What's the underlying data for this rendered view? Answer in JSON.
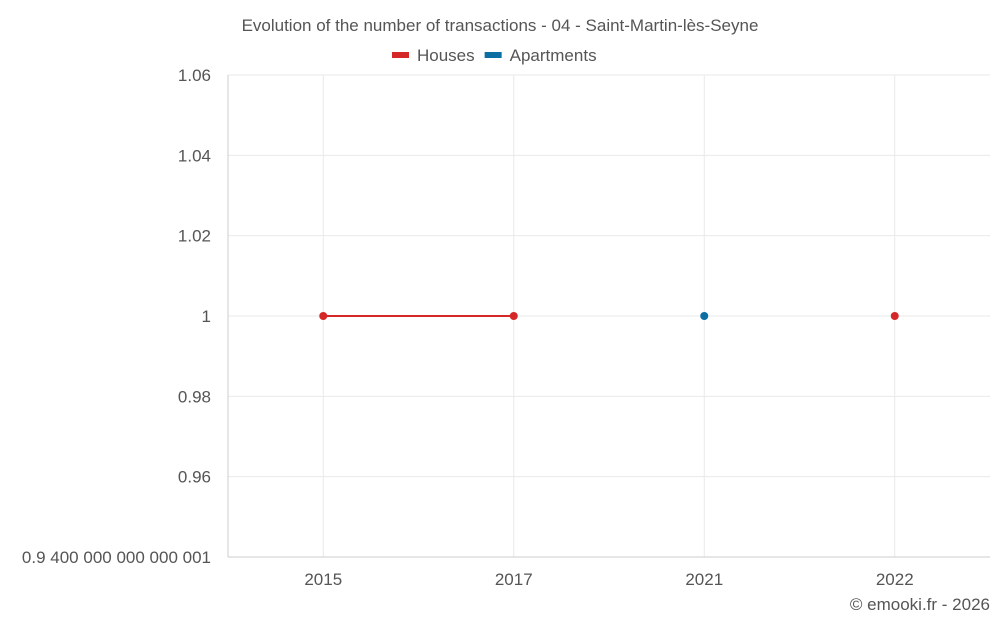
{
  "chart_data": {
    "type": "line",
    "title": "Evolution of the number of transactions - 04 - Saint-Martin-lès-Seyne",
    "categories": [
      "2015",
      "2017",
      "2021",
      "2022"
    ],
    "ylim": [
      0.94,
      1.06
    ],
    "yticks": [
      {
        "value": 0.94,
        "label": "0.9 400 000 000 000 001"
      },
      {
        "value": 0.96,
        "label": "0.96"
      },
      {
        "value": 0.98,
        "label": "0.98"
      },
      {
        "value": 1.0,
        "label": "1"
      },
      {
        "value": 1.02,
        "label": "1.02"
      },
      {
        "value": 1.04,
        "label": "1.04"
      },
      {
        "value": 1.06,
        "label": "1.06"
      }
    ],
    "series": [
      {
        "name": "Houses",
        "color": "#d62728",
        "values": [
          1,
          1,
          null,
          1
        ]
      },
      {
        "name": "Apartments",
        "color": "#0b6fa4",
        "values": [
          null,
          null,
          1,
          null
        ]
      }
    ],
    "xlabel": "",
    "ylabel": "",
    "legend_position": "top-center",
    "grid": true
  },
  "credit": "© emooki.fr - 2026"
}
